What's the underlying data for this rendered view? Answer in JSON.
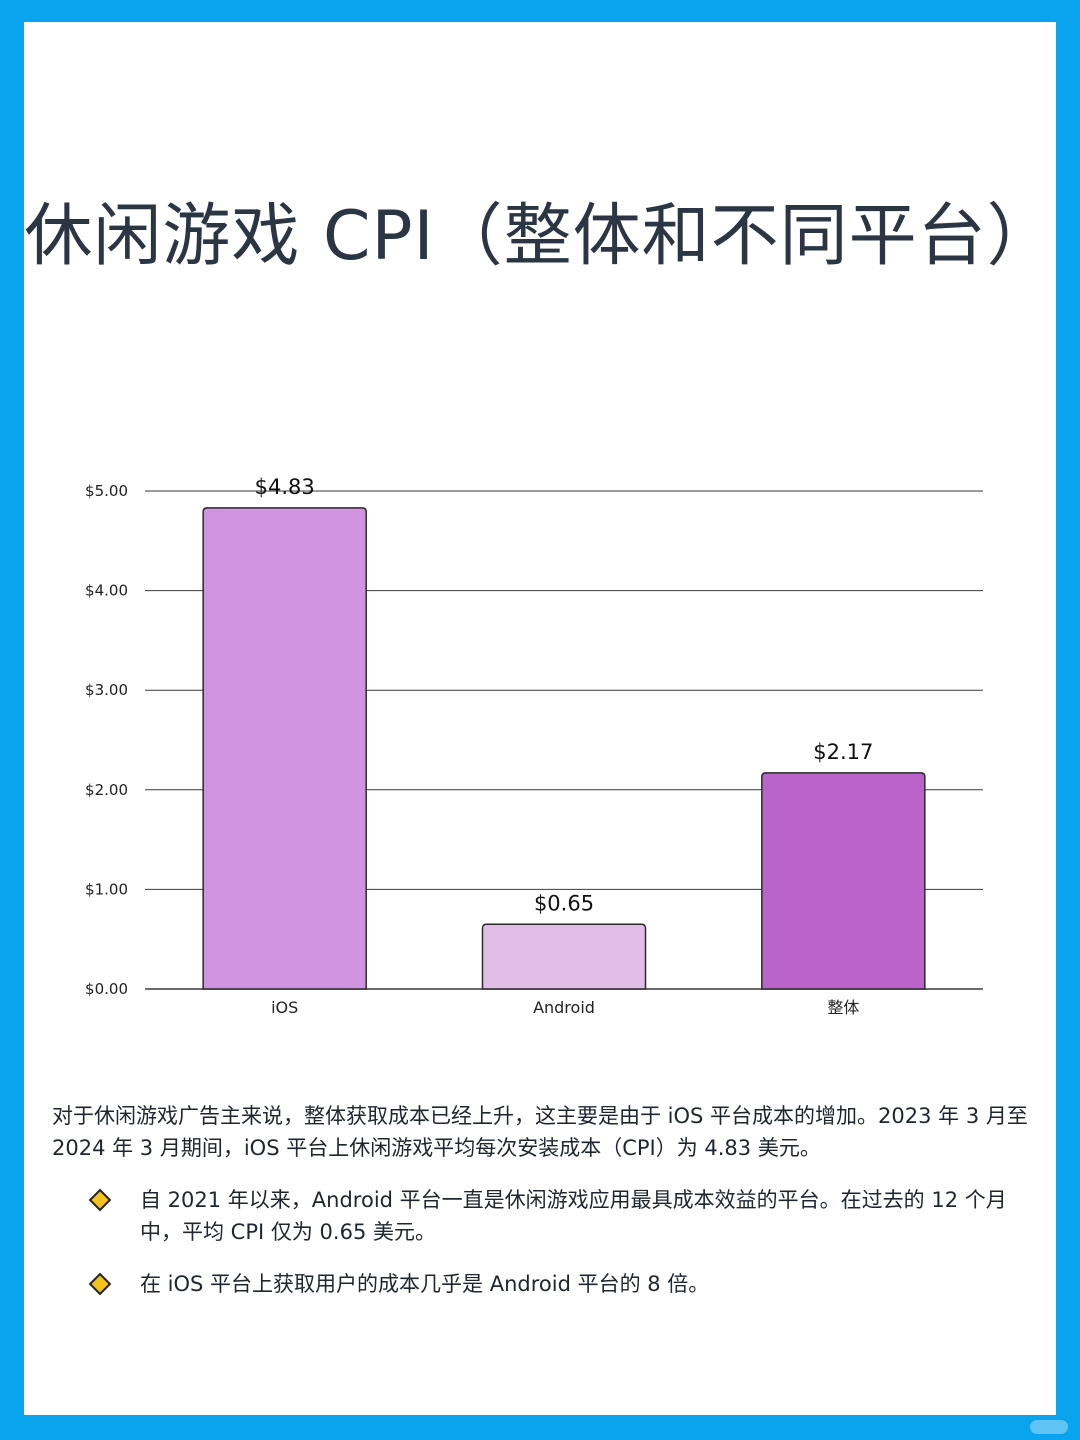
{
  "title": "休闲游戏 CPI（整体和不同平台）",
  "chart_data": {
    "type": "bar",
    "categories": [
      "iOS",
      "Android",
      "整体"
    ],
    "values": [
      4.83,
      0.65,
      2.17
    ],
    "value_labels": [
      "$4.83",
      "$0.65",
      "$2.17"
    ],
    "bar_colors": [
      "#d093df",
      "#e2bde8",
      "#b963cb"
    ],
    "y_ticks": [
      "$0.00",
      "$1.00",
      "$2.00",
      "$3.00",
      "$4.00",
      "$5.00"
    ],
    "ylim": [
      0,
      5
    ],
    "grid": true,
    "xlabel": "",
    "ylabel": ""
  },
  "paragraph": "对于休闲游戏广告主来说，整体获取成本已经上升，这主要是由于 iOS 平台成本的增加。2023 年 3 月至 2024 年 3 月期间，iOS 平台上休闲游戏平均每次安装成本（CPI）为 4.83 美元。",
  "bullets": [
    "自 2021 年以来，Android 平台一直是休闲游戏应用最具成本效益的平台。在过去的 12 个月中，平均 CPI 仅为 0.65 美元。",
    "在 iOS 平台上获取用户的成本几乎是 Android 平台的 8 倍。"
  ],
  "colors": {
    "frame": "#0aa3ee",
    "bullet_marker": "#f4c21a",
    "title_text": "#2b3544"
  }
}
